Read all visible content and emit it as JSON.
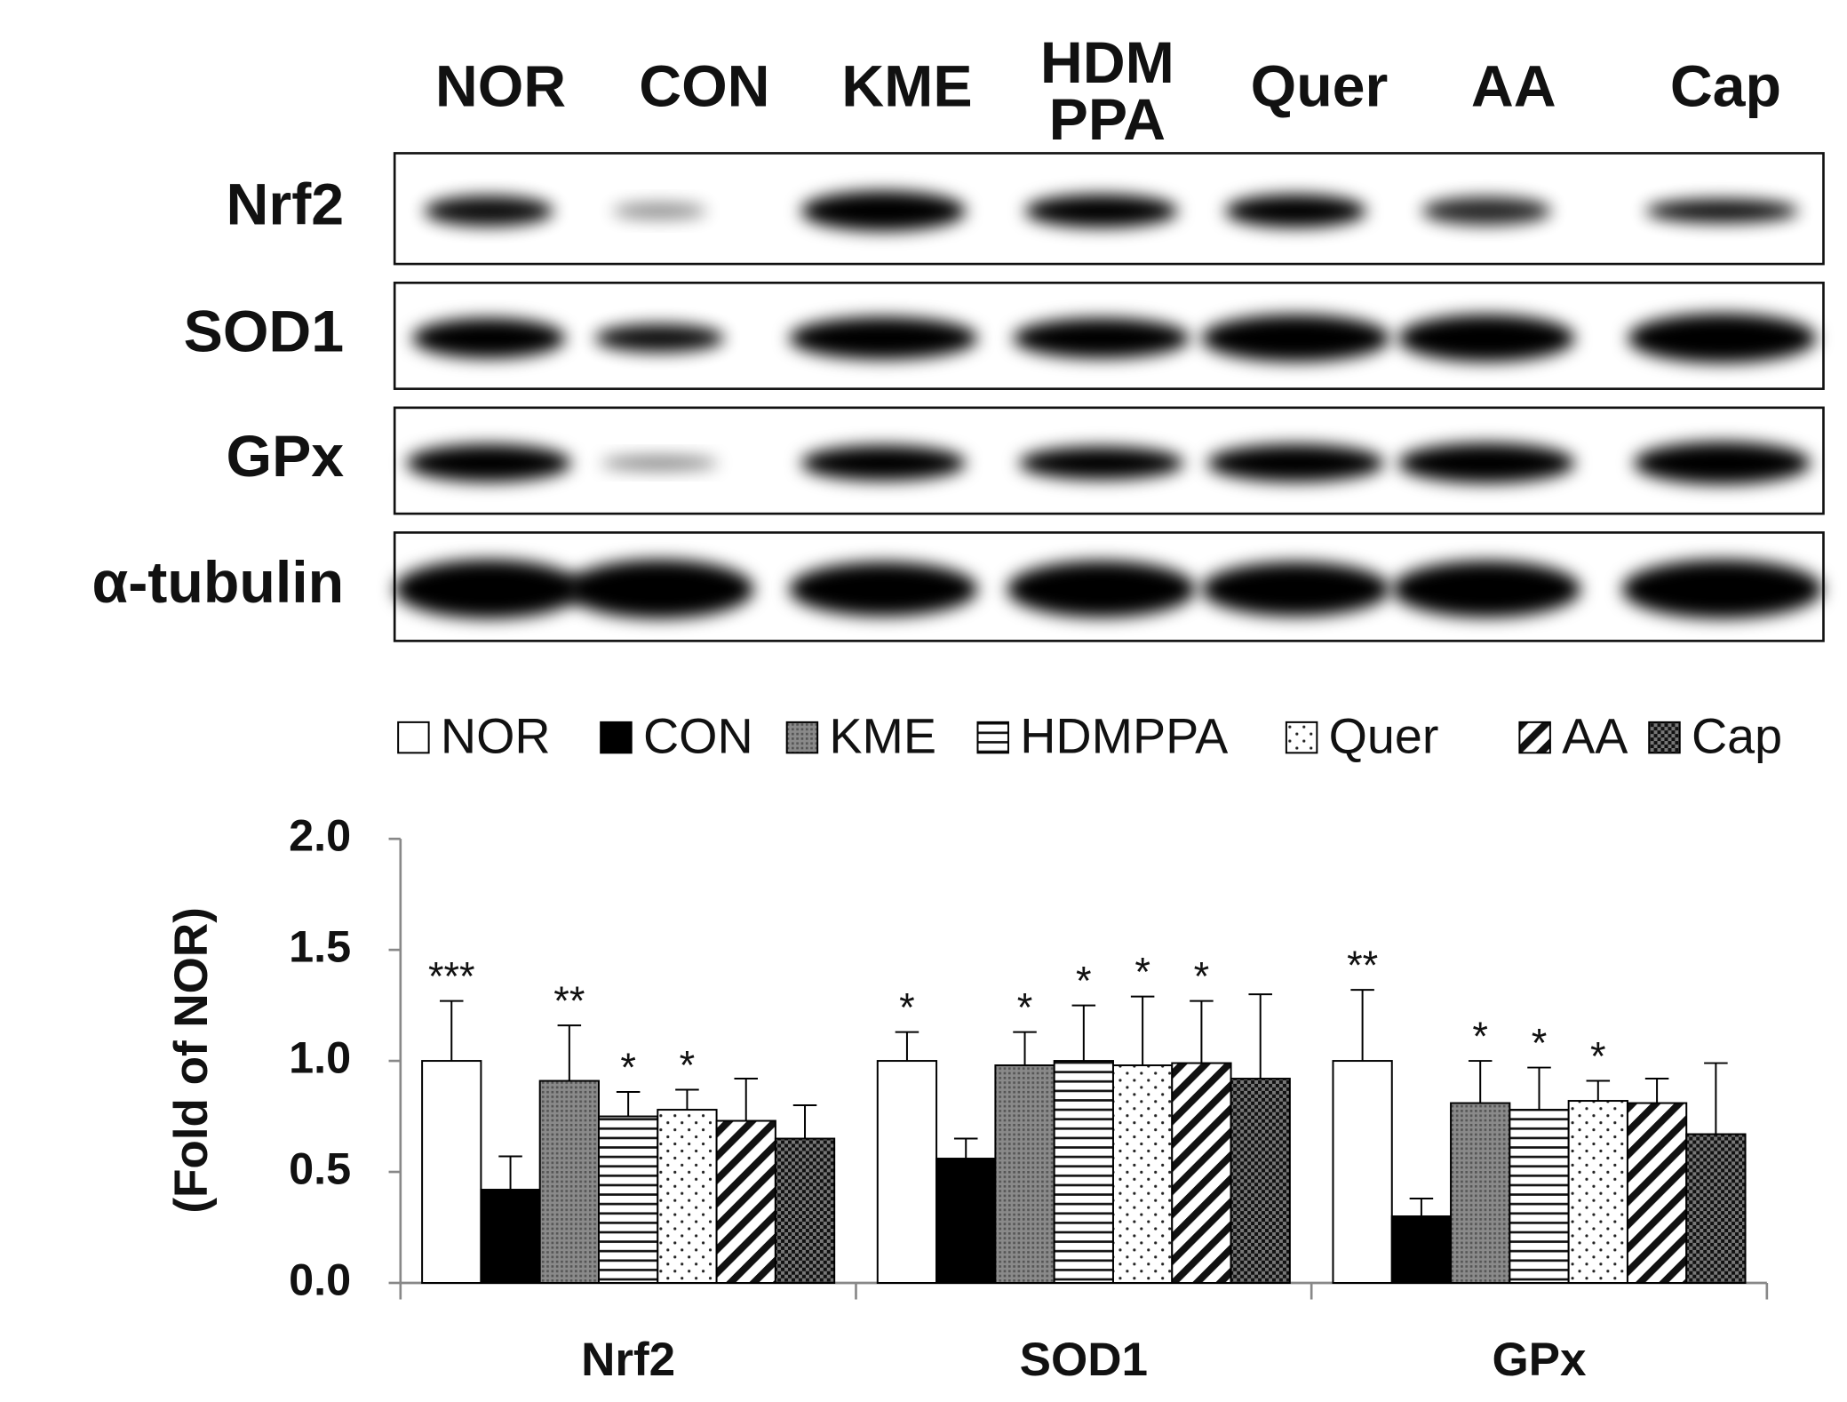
{
  "blot": {
    "lanes": [
      "NOR",
      "CON",
      "KME",
      [
        "HDM",
        "PPA"
      ],
      "Quer",
      "AA",
      "Cap"
    ],
    "rows": [
      "Nrf2",
      "SOD1",
      "GPx",
      "α-tubulin"
    ]
  },
  "chart_data": {
    "type": "bar",
    "y_label": "(Fold of NOR)",
    "categories": [
      "Nrf2",
      "SOD1",
      "GPx"
    ],
    "ylim": [
      0,
      2
    ],
    "yticks": [
      {
        "value": 0,
        "label": "0.0"
      },
      {
        "value": 0.5,
        "label": "0.5"
      },
      {
        "value": 1,
        "label": "1.0"
      },
      {
        "value": 1.5,
        "label": "1.5"
      },
      {
        "value": 2,
        "label": "2.0"
      }
    ],
    "series": [
      {
        "name": "NOR",
        "pattern": "white",
        "values": [
          1.0,
          1.0,
          1.0
        ],
        "errors": [
          0.27,
          0.13,
          0.32
        ],
        "annotations": [
          "***",
          "*",
          "**"
        ]
      },
      {
        "name": "CON",
        "pattern": "black",
        "values": [
          0.42,
          0.56,
          0.3
        ],
        "errors": [
          0.15,
          0.09,
          0.08
        ],
        "annotations": [
          null,
          null,
          null
        ]
      },
      {
        "name": "KME",
        "pattern": "gray",
        "values": [
          0.91,
          0.98,
          0.81
        ],
        "errors": [
          0.25,
          0.15,
          0.19
        ],
        "annotations": [
          "**",
          "*",
          "*"
        ]
      },
      {
        "name": "HDMPPA",
        "pattern": "hlines",
        "values": [
          0.75,
          1.0,
          0.78
        ],
        "errors": [
          0.11,
          0.25,
          0.19
        ],
        "annotations": [
          "*",
          "*",
          "*"
        ]
      },
      {
        "name": "Quer",
        "pattern": "dots",
        "values": [
          0.78,
          0.98,
          0.82
        ],
        "errors": [
          0.09,
          0.31,
          0.09
        ],
        "annotations": [
          "*",
          "*",
          "*"
        ]
      },
      {
        "name": "AA",
        "pattern": "diag",
        "values": [
          0.73,
          0.99,
          0.81
        ],
        "errors": [
          0.19,
          0.28,
          0.11
        ],
        "annotations": [
          null,
          "*",
          null
        ]
      },
      {
        "name": "Cap",
        "pattern": "checker",
        "values": [
          0.65,
          0.92,
          0.67
        ],
        "errors": [
          0.15,
          0.38,
          0.32
        ],
        "annotations": [
          null,
          null,
          null
        ]
      }
    ]
  }
}
